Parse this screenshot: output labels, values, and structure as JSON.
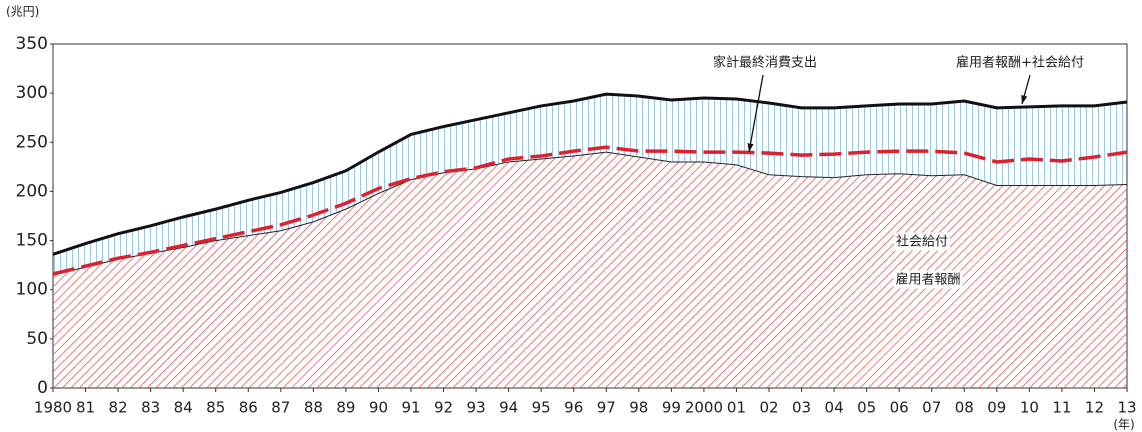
{
  "chart_data": {
    "type": "stacked-area-line",
    "y_unit": "(兆円)",
    "x_unit": "(年)",
    "categories": [
      "1980",
      "81",
      "82",
      "83",
      "84",
      "85",
      "86",
      "87",
      "88",
      "89",
      "90",
      "91",
      "92",
      "93",
      "94",
      "95",
      "96",
      "97",
      "98",
      "99",
      "2000",
      "01",
      "02",
      "03",
      "04",
      "05",
      "06",
      "07",
      "08",
      "09",
      "10",
      "11",
      "12",
      "13"
    ],
    "series": [
      {
        "name": "雇用者報酬",
        "color": "#e05a5a",
        "kind": "area",
        "values": [
          115,
          123,
          131,
          137,
          143,
          150,
          155,
          160,
          169,
          182,
          198,
          212,
          219,
          223,
          230,
          233,
          236,
          240,
          235,
          230,
          230,
          227,
          217,
          215,
          214,
          217,
          218,
          216,
          217,
          206,
          206,
          206,
          206,
          207
        ]
      },
      {
        "name": "社会給付",
        "color": "#6fb2de",
        "kind": "area",
        "values": [
          21,
          24,
          26,
          28,
          31,
          32,
          36,
          39,
          40,
          39,
          42,
          46,
          47,
          50,
          50,
          54,
          56,
          59,
          62,
          63,
          65,
          67,
          73,
          70,
          71,
          70,
          71,
          73,
          75,
          79,
          80,
          81,
          81,
          84
        ]
      },
      {
        "name": "家計最終消費支出",
        "color": "#e0202a",
        "kind": "line",
        "values": [
          116,
          124,
          132,
          138,
          145,
          152,
          159,
          166,
          176,
          188,
          203,
          213,
          220,
          224,
          233,
          236,
          241,
          245,
          241,
          241,
          240,
          240,
          239,
          237,
          238,
          240,
          241,
          241,
          239,
          230,
          233,
          231,
          235,
          240
        ]
      }
    ],
    "total_label": "雇用者報酬+社会給付",
    "ylim": [
      0,
      350
    ],
    "yticks": [
      0,
      50,
      100,
      150,
      200,
      250,
      300,
      350
    ]
  }
}
